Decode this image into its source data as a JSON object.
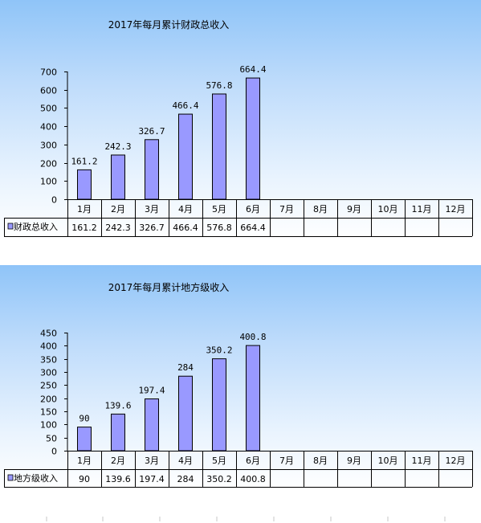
{
  "chart_data": [
    {
      "type": "bar",
      "title": "2017年每月累计财政总收入",
      "categories": [
        "1月",
        "2月",
        "3月",
        "4月",
        "5月",
        "6月",
        "7月",
        "8月",
        "9月",
        "10月",
        "11月",
        "12月"
      ],
      "series": [
        {
          "name": "财政总收入",
          "values": [
            161.2,
            242.3,
            326.7,
            466.4,
            576.8,
            664.4,
            null,
            null,
            null,
            null,
            null,
            null
          ],
          "color": "#9999ff"
        }
      ],
      "y_ticks": [
        "0",
        "100",
        "200",
        "300",
        "400",
        "500",
        "600",
        "700"
      ],
      "ylim": [
        0,
        700
      ],
      "data_labels": [
        "161.2",
        "242.3",
        "326.7",
        "466.4",
        "576.8",
        "664.4"
      ],
      "table_values": [
        "161.2",
        "242.3",
        "326.7",
        "466.4",
        "576.8",
        "664.4",
        "",
        "",
        "",
        "",
        "",
        ""
      ],
      "grid": false,
      "legend": "data-table"
    },
    {
      "type": "bar",
      "title": "2017年每月累计地方级收入",
      "categories": [
        "1月",
        "2月",
        "3月",
        "4月",
        "5月",
        "6月",
        "7月",
        "8月",
        "9月",
        "10月",
        "11月",
        "12月"
      ],
      "series": [
        {
          "name": "地方级收入",
          "values": [
            90,
            139.6,
            197.4,
            284,
            350.2,
            400.8,
            null,
            null,
            null,
            null,
            null,
            null
          ],
          "color": "#9999ff"
        }
      ],
      "y_ticks": [
        "0",
        "50",
        "100",
        "150",
        "200",
        "250",
        "300",
        "350",
        "400",
        "450"
      ],
      "ylim": [
        0,
        450
      ],
      "data_labels": [
        "90",
        "139.6",
        "197.4",
        "284",
        "350.2",
        "400.8"
      ],
      "table_values": [
        "90",
        "139.6",
        "197.4",
        "284",
        "350.2",
        "400.8",
        "",
        "",
        "",
        "",
        "",
        ""
      ],
      "grid": false,
      "legend": "data-table"
    }
  ]
}
